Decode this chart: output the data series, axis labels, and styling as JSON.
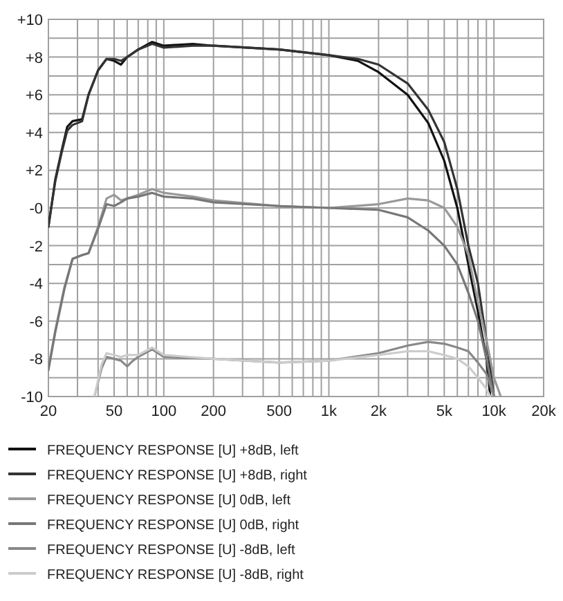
{
  "chart_data": {
    "type": "line",
    "log": "x",
    "grid": true,
    "legend": "bottom",
    "line_style": "solid",
    "xlim": [
      20,
      20000
    ],
    "xticks": [
      20,
      {
        "value": 30,
        "label": null
      },
      {
        "value": 40,
        "label": null
      },
      50,
      {
        "value": 60,
        "label": null
      },
      {
        "value": 70,
        "label": null
      },
      {
        "value": 80,
        "label": null
      },
      {
        "value": 90,
        "label": null
      },
      100,
      200,
      {
        "value": 300,
        "label": null
      },
      {
        "value": 400,
        "label": null
      },
      500,
      {
        "value": 600,
        "label": null
      },
      {
        "value": 700,
        "label": null
      },
      {
        "value": 800,
        "label": null
      },
      {
        "value": 900,
        "label": null
      },
      {
        "value": 1000,
        "label": "1k"
      },
      {
        "value": 2000,
        "label": "2k"
      },
      {
        "value": 3000,
        "label": null
      },
      {
        "value": 4000,
        "label": null
      },
      {
        "value": 5000,
        "label": "5k"
      },
      {
        "value": 6000,
        "label": null
      },
      {
        "value": 7000,
        "label": null
      },
      {
        "value": 8000,
        "label": null
      },
      {
        "value": 9000,
        "label": null
      },
      {
        "value": 10000,
        "label": "10k"
      },
      {
        "value": 20000,
        "label": "20k"
      }
    ],
    "ylim": [
      -10,
      10
    ],
    "yticks": [
      {
        "value": 10,
        "label": "+10"
      },
      {
        "value": 9,
        "label": null
      },
      {
        "value": 8,
        "label": "+8"
      },
      {
        "value": 7,
        "label": null
      },
      {
        "value": 6,
        "label": "+6"
      },
      {
        "value": 5,
        "label": null
      },
      {
        "value": 4,
        "label": "+4"
      },
      {
        "value": 3,
        "label": null
      },
      {
        "value": 2,
        "label": "+2"
      },
      {
        "value": 1,
        "label": null
      },
      {
        "value": 0,
        "label": "-0"
      },
      {
        "value": -1,
        "label": null
      },
      -2,
      {
        "value": -3,
        "label": null
      },
      -4,
      {
        "value": -5,
        "label": null
      },
      -6,
      {
        "value": -7,
        "label": null
      },
      -8,
      {
        "value": -9,
        "label": null
      },
      -10
    ],
    "series": [
      {
        "name": "FREQUENCY RESPONSE [U] +8dB, left",
        "color": "#111111",
        "x": [
          20,
          22,
          24,
          26,
          28,
          32,
          35,
          40,
          45,
          50,
          55,
          60,
          70,
          85,
          100,
          150,
          200,
          500,
          1000,
          1500,
          2000,
          3000,
          4000,
          5000,
          6000,
          7000,
          8000,
          9000,
          9500
        ],
        "values": [
          -1,
          1.5,
          3,
          4.3,
          4.6,
          4.7,
          6,
          7.3,
          7.9,
          7.8,
          7.6,
          8,
          8.4,
          8.8,
          8.6,
          8.7,
          8.6,
          8.4,
          8.1,
          7.8,
          7.2,
          6,
          4.5,
          2.5,
          0,
          -3,
          -5.5,
          -8,
          -10
        ]
      },
      {
        "name": "FREQUENCY RESPONSE [U] +8dB, right",
        "color": "#333333",
        "x": [
          20,
          22,
          24,
          26,
          28,
          32,
          35,
          40,
          45,
          50,
          55,
          60,
          70,
          85,
          100,
          150,
          200,
          500,
          1000,
          1500,
          2000,
          3000,
          4000,
          5000,
          6000,
          7000,
          8000,
          9000,
          10000
        ],
        "values": [
          -1,
          1.4,
          2.9,
          4.1,
          4.4,
          4.6,
          6,
          7.3,
          7.9,
          7.9,
          7.8,
          8,
          8.4,
          8.7,
          8.5,
          8.6,
          8.6,
          8.4,
          8.1,
          7.9,
          7.6,
          6.6,
          5.2,
          3.5,
          1,
          -2,
          -4,
          -7,
          -10
        ]
      },
      {
        "name": "FREQUENCY RESPONSE [U] 0dB, left",
        "color": "#999999",
        "x": [
          20,
          22,
          25,
          28,
          32,
          35,
          40,
          45,
          50,
          55,
          60,
          70,
          85,
          100,
          150,
          200,
          500,
          1000,
          2000,
          3000,
          4000,
          5000,
          6000,
          7000,
          8000,
          9000,
          10000,
          11000
        ],
        "values": [
          -8.5,
          -6.5,
          -4.2,
          -2.7,
          -2.5,
          -2.4,
          -1,
          0.5,
          0.7,
          0.4,
          0.5,
          0.7,
          1,
          0.8,
          0.6,
          0.4,
          0.1,
          0,
          0.2,
          0.5,
          0.4,
          0,
          -1,
          -2.5,
          -5,
          -7,
          -9,
          -10
        ]
      },
      {
        "name": "FREQUENCY RESPONSE [U] 0dB, right",
        "color": "#777777",
        "x": [
          20,
          22,
          25,
          28,
          32,
          35,
          40,
          45,
          50,
          55,
          60,
          70,
          85,
          100,
          150,
          200,
          500,
          1000,
          2000,
          3000,
          4000,
          5000,
          6000,
          7000,
          8000,
          9000,
          10000
        ],
        "values": [
          -8.6,
          -6.6,
          -4.3,
          -2.7,
          -2.5,
          -2.4,
          -1.1,
          0.2,
          0.1,
          0.3,
          0.5,
          0.6,
          0.8,
          0.6,
          0.5,
          0.3,
          0.1,
          0,
          -0.1,
          -0.5,
          -1.2,
          -2,
          -3,
          -4.5,
          -6,
          -8,
          -10
        ]
      },
      {
        "name": "FREQUENCY RESPONSE [U] -8dB, left",
        "color": "#888888",
        "x": [
          38,
          42,
          45,
          50,
          55,
          60,
          65,
          70,
          85,
          100,
          200,
          500,
          1000,
          2000,
          3000,
          4000,
          5000,
          6000,
          7000,
          8000,
          9000,
          10000
        ],
        "values": [
          -10,
          -8.5,
          -7.9,
          -8,
          -8.1,
          -8.4,
          -8.1,
          -7.9,
          -7.5,
          -7.9,
          -8,
          -8.2,
          -8.1,
          -7.7,
          -7.3,
          -7.1,
          -7.2,
          -7.4,
          -7.6,
          -8.2,
          -8.8,
          -10
        ]
      },
      {
        "name": "FREQUENCY RESPONSE [U] -8dB, right",
        "color": "#cccccc",
        "x": [
          38,
          42,
          45,
          50,
          55,
          60,
          70,
          85,
          100,
          200,
          500,
          1000,
          2000,
          3000,
          4000,
          5000,
          6000,
          7000,
          8000,
          9000,
          9500
        ],
        "values": [
          -10,
          -8.3,
          -7.7,
          -7.8,
          -7.9,
          -7.8,
          -7.8,
          -7.4,
          -7.8,
          -8,
          -8.2,
          -8.1,
          -7.8,
          -7.6,
          -7.6,
          -7.8,
          -8,
          -8.4,
          -9,
          -9.6,
          -10
        ]
      }
    ]
  }
}
